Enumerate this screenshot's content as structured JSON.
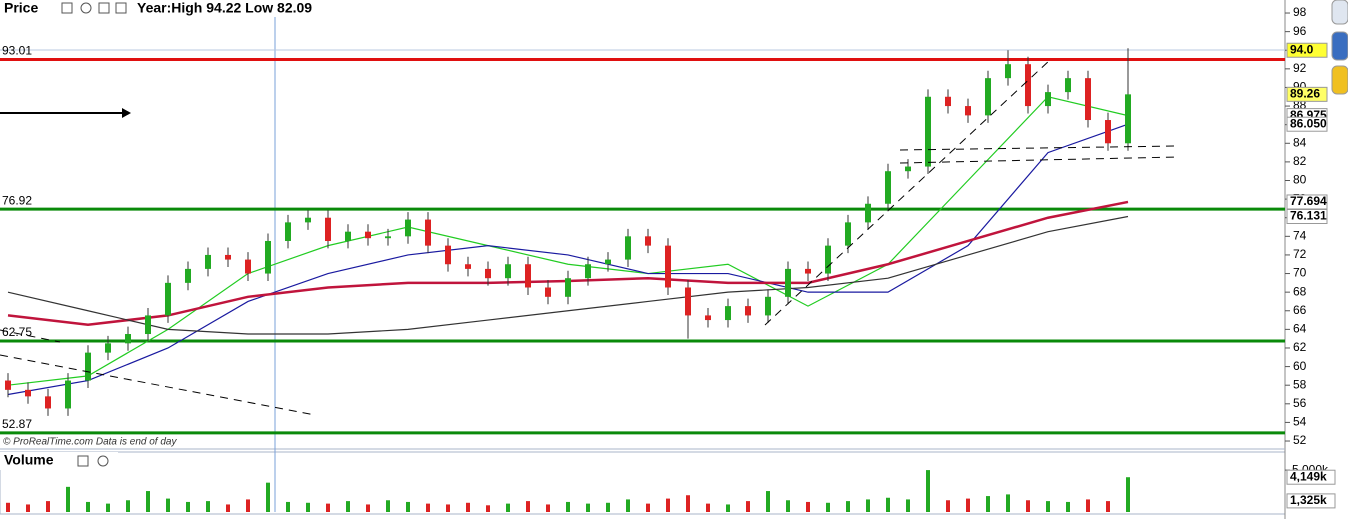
{
  "chart_data": [
    {
      "type": "candlestick",
      "title": "Price",
      "subtitle": "Year:High 94.22 Low 82.09",
      "note": "© ProRealTime.com  Data is end of day",
      "up_color": "#22aa22",
      "down_color": "#dd2222",
      "open": [
        58.5,
        57.5,
        56.8,
        55.5,
        58.5,
        61.5,
        62.5,
        63.5,
        65.5,
        69.0,
        70.5,
        72.0,
        71.5,
        70.0,
        73.5,
        75.5,
        76.0,
        73.5,
        74.5,
        73.8,
        74.0,
        75.8,
        73.0,
        71.0,
        70.5,
        69.5,
        71.0,
        68.5,
        67.5,
        69.5,
        71.0,
        71.5,
        74.0,
        73.0,
        68.5,
        65.5,
        65.0,
        66.5,
        65.5,
        67.5,
        70.5,
        70.0,
        73.0,
        75.5,
        77.5,
        81.0,
        81.5,
        89.0,
        88.0,
        87.0,
        91.0,
        92.5,
        88.0,
        89.5,
        91.0,
        86.5,
        84.0
      ],
      "high": [
        59.3,
        58.3,
        57.6,
        59.3,
        62.3,
        63.3,
        64.3,
        66.3,
        69.8,
        71.3,
        72.8,
        72.8,
        72.3,
        74.3,
        76.3,
        76.8,
        76.8,
        75.3,
        75.3,
        74.8,
        76.6,
        76.6,
        73.8,
        71.8,
        71.3,
        71.8,
        71.8,
        69.3,
        70.3,
        71.8,
        72.3,
        74.8,
        74.8,
        73.8,
        69.3,
        66.3,
        67.3,
        67.3,
        68.3,
        71.3,
        71.3,
        73.8,
        76.3,
        78.3,
        81.8,
        82.3,
        89.8,
        89.8,
        88.8,
        91.8,
        94.0,
        93.3,
        90.3,
        91.8,
        91.8,
        87.3,
        94.22
      ],
      "low": [
        56.7,
        56.0,
        54.7,
        54.7,
        57.7,
        60.7,
        61.7,
        62.7,
        64.7,
        68.2,
        69.7,
        70.7,
        69.2,
        69.2,
        72.7,
        74.7,
        72.7,
        72.7,
        73.0,
        73.0,
        73.2,
        72.2,
        70.2,
        69.7,
        68.7,
        68.7,
        67.7,
        66.7,
        66.7,
        68.7,
        70.2,
        70.7,
        72.2,
        67.7,
        63.0,
        64.2,
        64.2,
        64.7,
        64.7,
        66.7,
        69.2,
        69.2,
        72.2,
        74.7,
        76.7,
        80.2,
        80.7,
        87.2,
        86.2,
        86.2,
        90.2,
        87.2,
        87.2,
        88.7,
        85.7,
        83.2,
        83.2
      ],
      "close": [
        57.5,
        56.8,
        55.5,
        58.5,
        61.5,
        62.5,
        63.5,
        65.5,
        69.0,
        70.5,
        72.0,
        71.5,
        70.0,
        73.5,
        75.5,
        76.0,
        73.5,
        74.5,
        73.8,
        74.0,
        75.8,
        73.0,
        71.0,
        70.5,
        69.5,
        71.0,
        68.5,
        67.5,
        69.5,
        71.0,
        71.5,
        74.0,
        73.0,
        68.5,
        65.5,
        65.0,
        66.5,
        65.5,
        67.5,
        70.5,
        70.0,
        73.0,
        75.5,
        77.5,
        81.0,
        81.5,
        89.0,
        88.0,
        87.0,
        91.0,
        92.5,
        88.0,
        89.5,
        91.0,
        86.5,
        84.0,
        89.26
      ],
      "lines": [
        {
          "color": "#22cc22",
          "x": [
            0,
            4,
            8,
            12,
            16,
            20,
            24,
            28,
            32,
            36,
            40,
            44,
            48,
            52,
            56
          ],
          "values": [
            58,
            59,
            64,
            70,
            73,
            75,
            73,
            71,
            70,
            71,
            66.5,
            71,
            80,
            89,
            86.975
          ]
        },
        {
          "color": "#1a1aa0",
          "x": [
            0,
            4,
            8,
            12,
            16,
            20,
            24,
            28,
            32,
            36,
            40,
            44,
            48,
            52,
            56
          ],
          "values": [
            57,
            58.5,
            62,
            67,
            70,
            72,
            73,
            72,
            70,
            70,
            68,
            68,
            73,
            83,
            86.05
          ]
        },
        {
          "color": "#c0143c",
          "x": [
            0,
            4,
            8,
            12,
            16,
            20,
            24,
            28,
            32,
            36,
            40,
            44,
            48,
            52,
            56
          ],
          "values": [
            65.5,
            64.5,
            65.5,
            67.5,
            68.5,
            69,
            69,
            69.2,
            69.5,
            69,
            69,
            71,
            73.5,
            76,
            77.694
          ]
        },
        {
          "color": "#333333",
          "x": [
            0,
            4,
            8,
            12,
            16,
            20,
            24,
            28,
            32,
            36,
            40,
            44,
            48,
            52,
            56
          ],
          "values": [
            68,
            66,
            64,
            63.5,
            63.5,
            64,
            65,
            66,
            67,
            68,
            68.5,
            69.5,
            72,
            74.5,
            76.131
          ]
        }
      ],
      "levels": [
        {
          "value": 93.01,
          "color": "#e01010"
        },
        {
          "value": 76.92,
          "color": "#0a8a0a"
        },
        {
          "value": 62.75,
          "color": "#0a8a0a"
        },
        {
          "value": 52.87,
          "color": "#0a8a0a"
        }
      ],
      "price_tags": [
        {
          "value": 94,
          "label": "94.0",
          "color": "#000000",
          "background": "#ffff33"
        },
        {
          "value": 89.26,
          "label": "89.26",
          "color": "#000000",
          "background": "#ffff66"
        },
        {
          "value": 86.975,
          "label": "86.975",
          "color": "#22cc22",
          "background": "#ffffff"
        },
        {
          "value": 86.05,
          "label": "86.050",
          "color": "#1a1aa0",
          "background": "#ffffff"
        },
        {
          "value": 77.694,
          "label": "77.694",
          "color": "#c0143c",
          "background": "#ffffff"
        },
        {
          "value": 76.131,
          "label": "76.131",
          "color": "#333333",
          "background": "#ffffff"
        }
      ],
      "ylim": [
        51.25,
        99.4
      ],
      "yticks": [
        52,
        54,
        56,
        58,
        60,
        62,
        64,
        66,
        68,
        70,
        72,
        74,
        76,
        78,
        80,
        82,
        84,
        86,
        88,
        90,
        92,
        94,
        96,
        98
      ]
    },
    {
      "type": "bar",
      "title": "Volume",
      "values": [
        1100,
        900,
        1300,
        3000,
        1200,
        1000,
        1400,
        2500,
        1600,
        1200,
        1300,
        900,
        1500,
        3500,
        1200,
        1100,
        1000,
        1300,
        900,
        1400,
        1200,
        1000,
        900,
        1100,
        800,
        1000,
        1300,
        900,
        1200,
        1000,
        1100,
        1500,
        1000,
        1600,
        2000,
        1000,
        900,
        1300,
        2500,
        1400,
        1200,
        1100,
        1300,
        1500,
        1700,
        1500,
        5000,
        1400,
        1600,
        1900,
        2100,
        1400,
        1300,
        1200,
        1500,
        1300,
        4149
      ],
      "price_tags": [
        {
          "value": 4149,
          "label": "4,149k",
          "color": "#22aa22"
        },
        {
          "value": 1325,
          "label": "1,325k",
          "color": "#000000"
        }
      ],
      "ylim": [
        0,
        6800
      ],
      "yticks": [
        {
          "value": 5000,
          "label": "5,000k"
        }
      ]
    }
  ]
}
